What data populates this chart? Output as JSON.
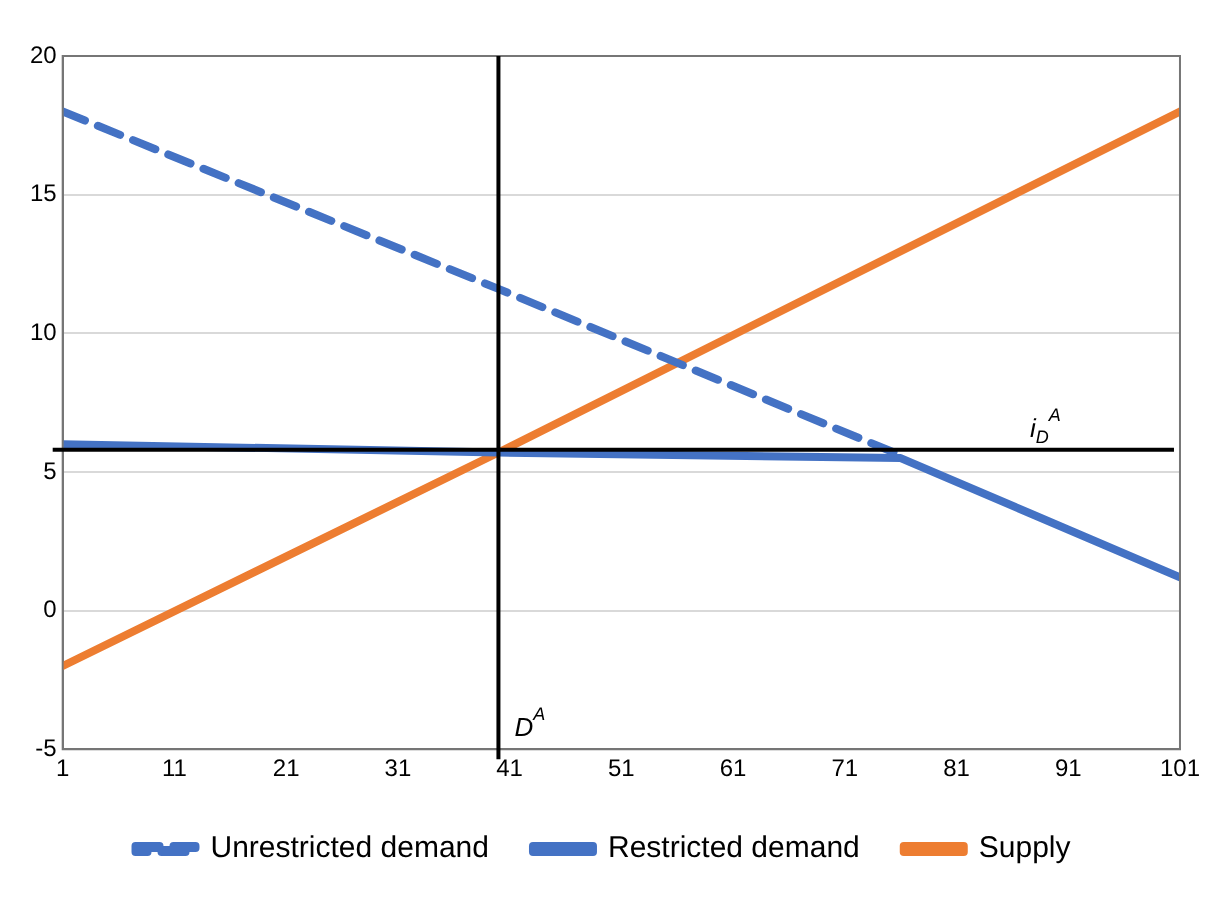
{
  "chart_data": {
    "type": "line",
    "xlim": [
      1,
      101
    ],
    "xticks": [
      1,
      11,
      21,
      31,
      41,
      51,
      61,
      71,
      81,
      91,
      101
    ],
    "ylim": [
      -5,
      20
    ],
    "yticks": [
      -5,
      0,
      5,
      10,
      15,
      20
    ],
    "grid": "y",
    "legend": "bottom",
    "marker": "none",
    "series": [
      {
        "name": "Unrestricted demand",
        "color": "#4472c4",
        "line_style": "dashed",
        "x": [
          1,
          40,
          76
        ],
        "values": [
          18,
          11.6,
          5.6
        ]
      },
      {
        "name": "Restricted demand",
        "color": "#4472c4",
        "line_style": "solid",
        "x": [
          1,
          40,
          76,
          101
        ],
        "values": [
          6,
          5.7,
          5.5,
          1.2
        ]
      },
      {
        "name": "Supply",
        "color": "#ed7d31",
        "line_style": "solid",
        "x": [
          1,
          40,
          101
        ],
        "values": [
          -2,
          5.7,
          18
        ]
      }
    ],
    "ref_lines": [
      {
        "axis": "y",
        "value": 5.8,
        "label": "i$_{D}$$^{A}$",
        "color": "#000000"
      },
      {
        "axis": "x",
        "value": 40,
        "label": "D$^{A}$",
        "color": "#000000"
      }
    ]
  }
}
